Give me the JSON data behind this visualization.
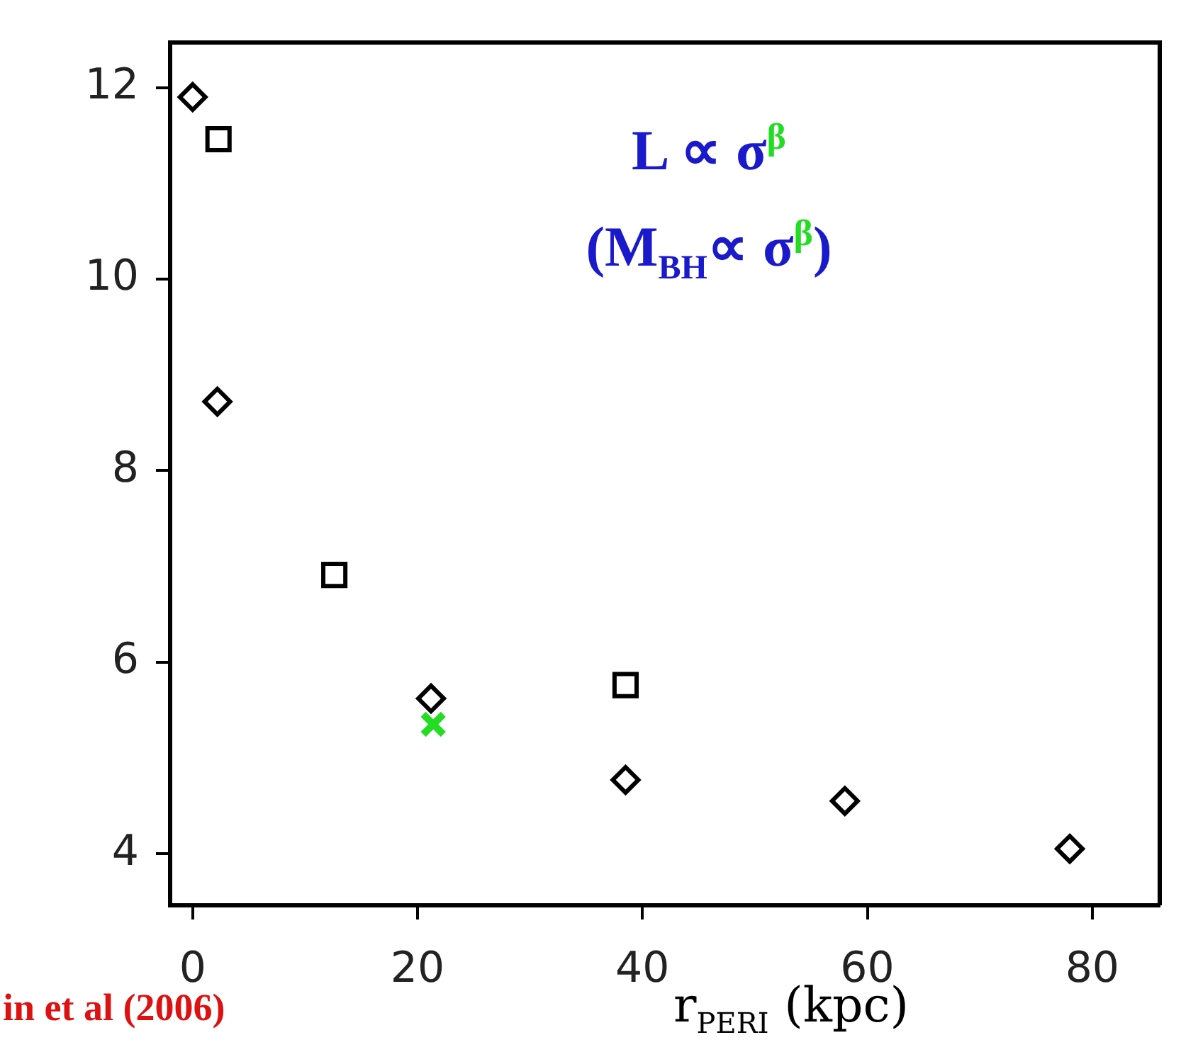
{
  "chart_data": {
    "type": "scatter",
    "xlabel": "r$_{PERI}$ (kpc)",
    "xlim": [
      -2,
      86
    ],
    "xticks": [
      0,
      20,
      40,
      60,
      80
    ],
    "ylim": [
      3.46,
      12.47
    ],
    "yticks": [
      4,
      6,
      8,
      10,
      12
    ],
    "legend": false,
    "series": [
      {
        "color": "#000000",
        "marker": "diamond",
        "x": [
          0,
          2.2,
          21.2,
          38.5,
          58,
          78
        ],
        "values": [
          11.9,
          8.72,
          5.62,
          4.77,
          4.55,
          4.05
        ]
      },
      {
        "color": "#000000",
        "marker": "square",
        "x": [
          2.3,
          12.6,
          38.5
        ],
        "values": [
          11.46,
          6.91,
          5.76
        ]
      },
      {
        "color": "#22dd22",
        "marker": "cross",
        "x": [
          21.4
        ],
        "values": [
          5.35
        ]
      }
    ],
    "annotations": [
      "L ∝ σ$^{β}$",
      "(M$_{BH}$∝ σ$^{β}$)",
      "in et al (2006)"
    ]
  }
}
